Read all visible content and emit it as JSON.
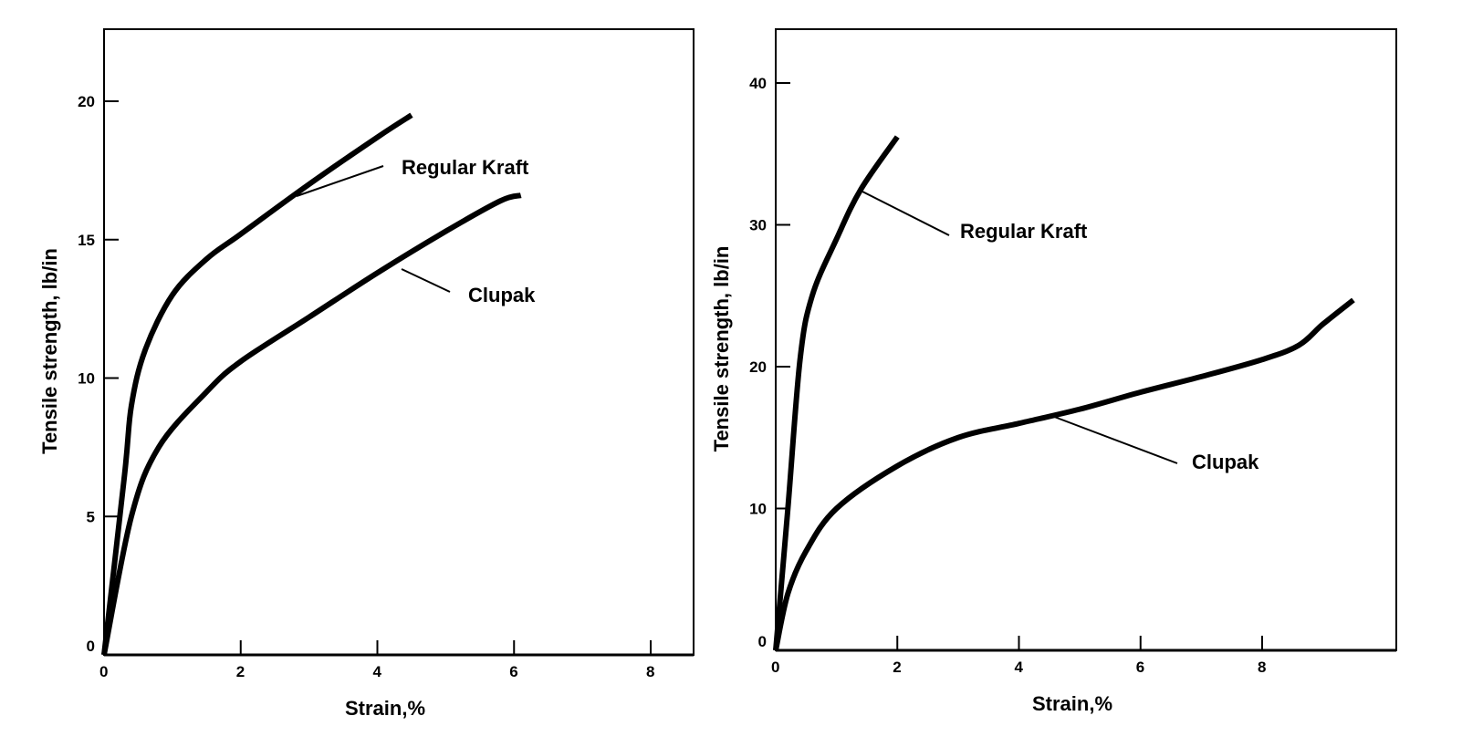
{
  "chart_data": [
    {
      "type": "line",
      "xlabel": "Strain,%",
      "ylabel": "Tensile strength, lb/in",
      "xlim": [
        0,
        8.6
      ],
      "ylim": [
        0,
        22.5
      ],
      "xticks": [
        0,
        2,
        4,
        6,
        8
      ],
      "yticks": [
        0,
        5,
        10,
        15,
        20
      ],
      "grid": false,
      "series": [
        {
          "name": "Regular Kraft",
          "x": [
            0,
            0.3,
            0.4,
            0.6,
            1,
            1.5,
            2,
            3,
            4,
            4.5
          ],
          "y": [
            0,
            6.5,
            9,
            11,
            13,
            14.3,
            15.2,
            17,
            18.7,
            19.5
          ]
        },
        {
          "name": "Clupak",
          "x": [
            0,
            0.4,
            0.8,
            1.5,
            2,
            3,
            4,
            5,
            5.8,
            6.1
          ],
          "y": [
            0,
            5,
            7.5,
            9.5,
            10.6,
            12.2,
            13.8,
            15.3,
            16.4,
            16.6
          ]
        }
      ]
    },
    {
      "type": "line",
      "xlabel": "Strain,%",
      "ylabel": "Tensile strength, lb/in",
      "xlim": [
        0,
        9.8
      ],
      "ylim": [
        0,
        44
      ],
      "xticks": [
        0,
        2,
        4,
        6,
        8
      ],
      "yticks": [
        0,
        10,
        20,
        30,
        40
      ],
      "grid": false,
      "series": [
        {
          "name": "Regular Kraft",
          "x": [
            0,
            0.2,
            0.4,
            0.6,
            1,
            1.4,
            2
          ],
          "y": [
            0,
            10,
            20.5,
            25,
            29,
            32.5,
            36.2
          ]
        },
        {
          "name": "Clupak",
          "x": [
            0,
            0.2,
            0.5,
            1,
            2,
            3,
            4,
            5,
            6,
            7,
            8,
            8.6,
            9,
            9.5
          ],
          "y": [
            0,
            4,
            7,
            10,
            13,
            15,
            16,
            17,
            18.2,
            19.3,
            20.5,
            21.5,
            23,
            24.7
          ]
        }
      ]
    }
  ]
}
